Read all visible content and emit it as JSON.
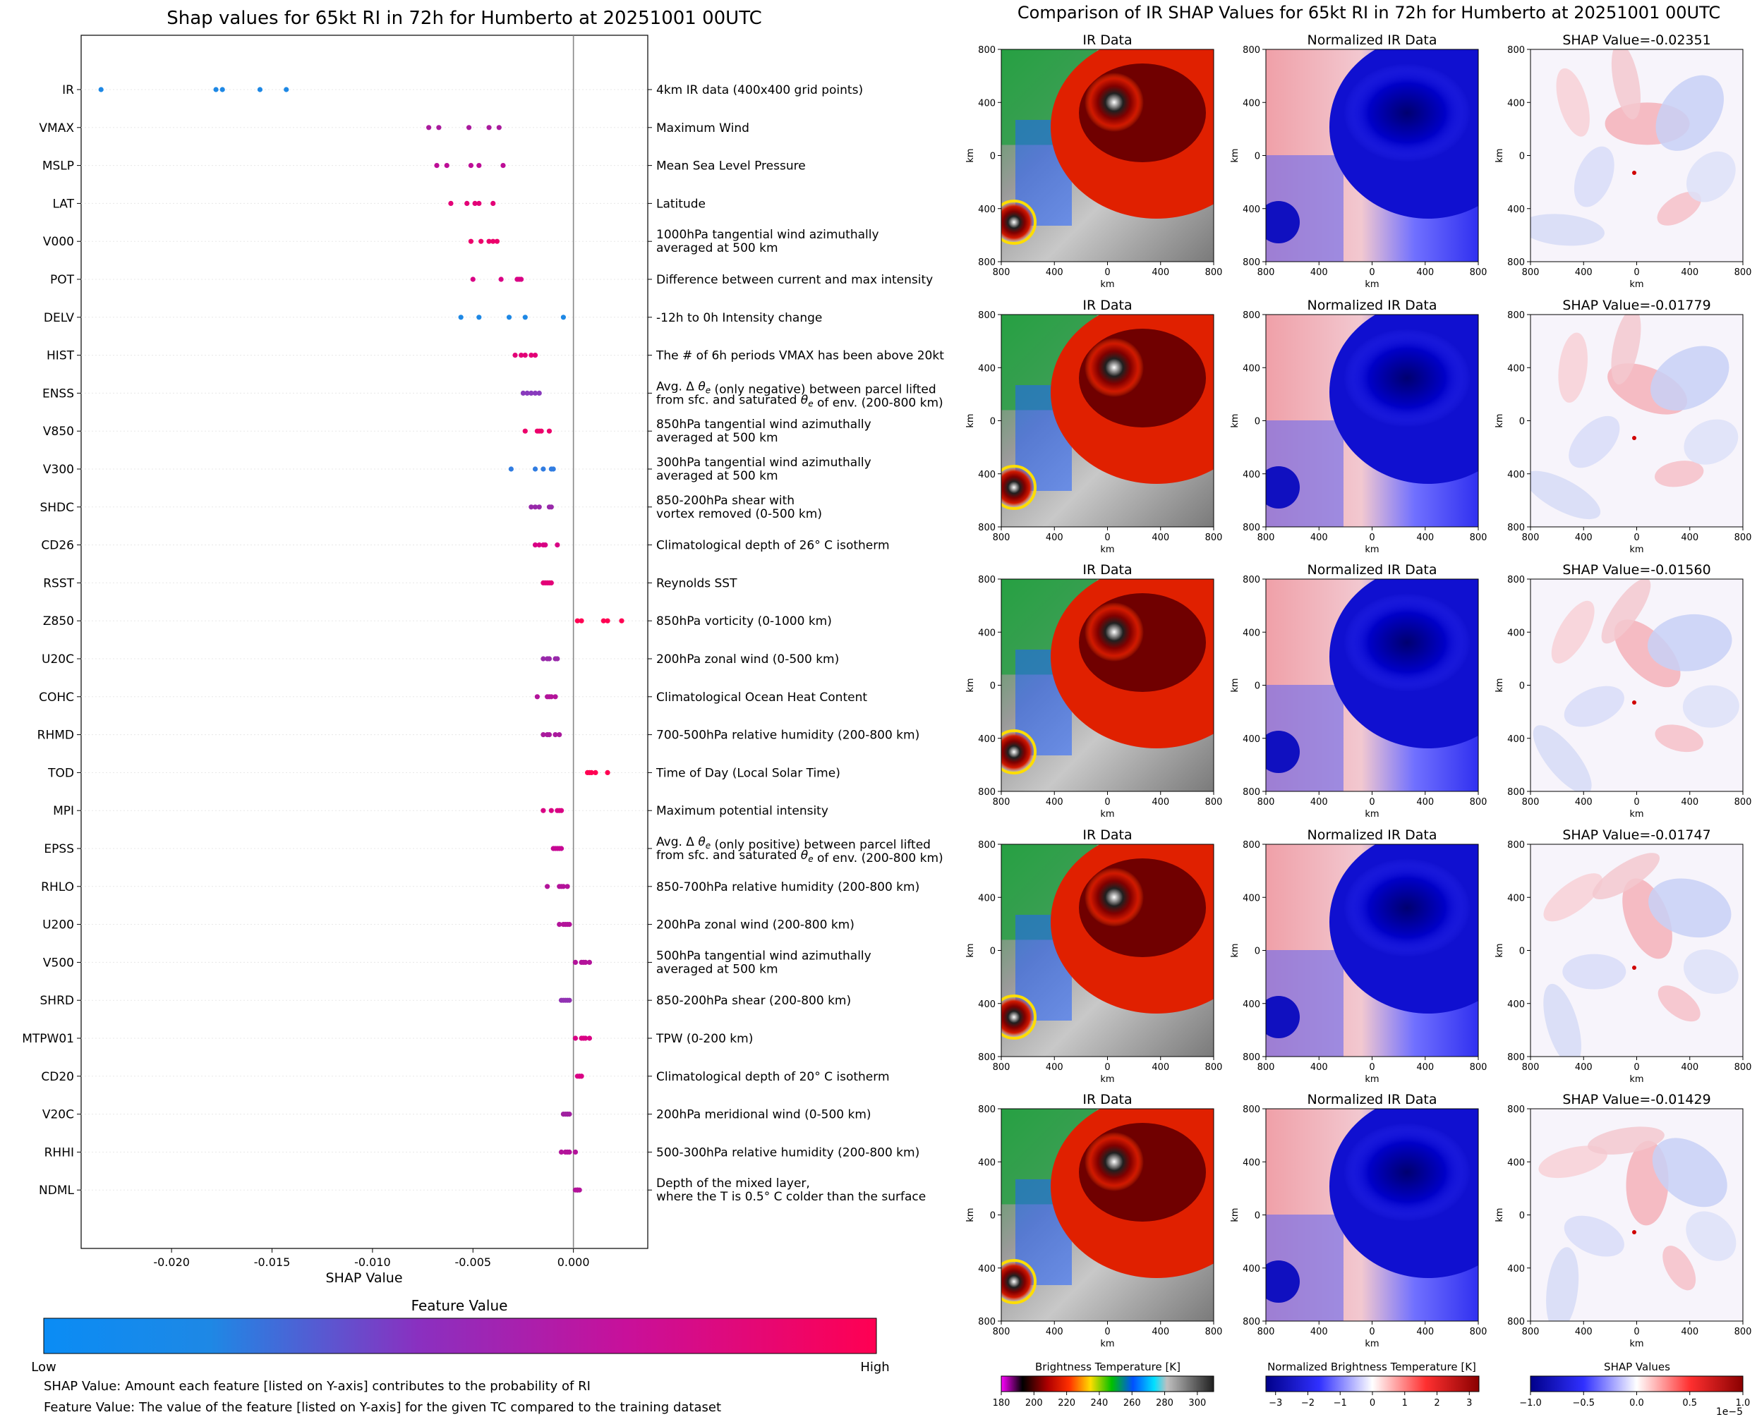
{
  "left_chart": {
    "title": "Shap values for 65kt RI in 72h for Humberto at 20251001 00UTC",
    "xlabel": "SHAP Value",
    "colorbar_title": "Feature Value",
    "colorbar_low": "Low",
    "colorbar_high": "High",
    "footnote_1": "SHAP Value: Amount each feature [listed on Y-axis] contributes to the probability of RI",
    "footnote_2": "Feature Value: The value of the feature [listed on Y-axis] for the given TC compared to the training dataset",
    "ticks": [
      "-0.020",
      "-0.015",
      "-0.010",
      "-0.005",
      "0.000"
    ]
  },
  "right_chart": {
    "suptitle": "Comparison of IR SHAP Values for 65kt RI in 72h for Humberto at 20251001 00UTC",
    "col1_title": "IR Data",
    "col2_title": "Normalized IR Data",
    "shap_prefix": "SHAP Value=",
    "axis_label": "km",
    "axis_ticks": [
      "800",
      "400",
      "0",
      "400",
      "800"
    ],
    "cbar1_title": "Brightness Temperature [K]",
    "cbar2_title": "Normalized Brightness Temperature [K]",
    "cbar3_title": "SHAP Values",
    "cbar3_scale": "1e−5",
    "cbar1_ticks": [
      "180",
      "200",
      "220",
      "240",
      "260",
      "280",
      "300"
    ],
    "cbar2_ticks": [
      "−3",
      "−2",
      "−1",
      "0",
      "1",
      "2",
      "3"
    ],
    "cbar3_ticks": [
      "−1.0",
      "−0.5",
      "0.0",
      "0.5",
      "1.0"
    ]
  },
  "chart_data": [
    {
      "type": "scatter",
      "title": "Shap values for 65kt RI in 72h for Humberto at 20251001 00UTC",
      "xlabel": "SHAP Value",
      "xlim": [
        -0.0245,
        0.0037
      ],
      "colormap": [
        "#1e88e5",
        "#7a4cd0",
        "#a020a0",
        "#d00090",
        "#ff0052"
      ],
      "features": [
        {
          "name": "IR",
          "desc": [
            "4km IR data (400x400 grid points)"
          ],
          "values": [
            -0.02351,
            -0.01779,
            -0.01747,
            -0.0156,
            -0.01429
          ],
          "color": 0
        },
        {
          "name": "VMAX",
          "desc": [
            "Maximum Wind"
          ],
          "values": [
            -0.0072,
            -0.0067,
            -0.0052,
            -0.0042,
            -0.0037
          ],
          "color": 0.55
        },
        {
          "name": "MSLP",
          "desc": [
            "Mean Sea Level Pressure"
          ],
          "values": [
            -0.0068,
            -0.0063,
            -0.0051,
            -0.0047,
            -0.0035
          ],
          "color": 0.65
        },
        {
          "name": "LAT",
          "desc": [
            "Latitude"
          ],
          "values": [
            -0.0061,
            -0.0053,
            -0.0049,
            -0.0047,
            -0.004
          ],
          "color": 0.85
        },
        {
          "name": "V000",
          "desc": [
            "1000hPa tangential wind azimuthally",
            "averaged at 500 km"
          ],
          "values": [
            -0.0051,
            -0.0046,
            -0.0042,
            -0.004,
            -0.0038
          ],
          "color": 0.9
        },
        {
          "name": "POT",
          "desc": [
            "Difference between current and max intensity"
          ],
          "values": [
            -0.005,
            -0.0036,
            -0.0028,
            -0.0027,
            -0.0026
          ],
          "color": 0.8
        },
        {
          "name": "DELV",
          "desc": [
            "-12h to 0h Intensity change"
          ],
          "values": [
            -0.0056,
            -0.0047,
            -0.0032,
            -0.0024,
            -0.0005
          ],
          "color": 0
        },
        {
          "name": "HIST",
          "desc": [
            "The # of 6h periods VMAX has been above 20kt"
          ],
          "values": [
            -0.0029,
            -0.0026,
            -0.0024,
            -0.0021,
            -0.0019
          ],
          "color": 0.85
        },
        {
          "name": "ENSS",
          "desc": [
            "Avg. Δ θe (only negative) between parcel lifted",
            "from sfc. and saturated θe of env. (200-800 km)"
          ],
          "values": [
            -0.0025,
            -0.0023,
            -0.0021,
            -0.0019,
            -0.0017
          ],
          "color": 0.35
        },
        {
          "name": "V850",
          "desc": [
            "850hPa tangential wind azimuthally",
            "averaged at 500 km"
          ],
          "values": [
            -0.0024,
            -0.0018,
            -0.0017,
            -0.0016,
            -0.0012
          ],
          "color": 0.9
        },
        {
          "name": "V300",
          "desc": [
            "300hPa tangential wind azimuthally",
            "averaged at 500 km"
          ],
          "values": [
            -0.0031,
            -0.0019,
            -0.0015,
            -0.0011,
            -0.001
          ],
          "color": 0.05
        },
        {
          "name": "SHDC",
          "desc": [
            "850-200hPa shear with",
            "vortex removed (0-500 km)"
          ],
          "values": [
            -0.0021,
            -0.0019,
            -0.0017,
            -0.0012,
            -0.0011
          ],
          "color": 0.45
        },
        {
          "name": "CD26",
          "desc": [
            "Climatological depth of 26° C isotherm"
          ],
          "values": [
            -0.0019,
            -0.0017,
            -0.0015,
            -0.0014,
            -0.0008
          ],
          "color": 0.8
        },
        {
          "name": "RSST",
          "desc": [
            "Reynolds SST"
          ],
          "values": [
            -0.0015,
            -0.0014,
            -0.0013,
            -0.0012,
            -0.0011
          ],
          "color": 0.85
        },
        {
          "name": "Z850",
          "desc": [
            "850hPa vorticity (0-1000 km)"
          ],
          "values": [
            0.0002,
            0.0004,
            0.0015,
            0.0017,
            0.0024
          ],
          "color": 1
        },
        {
          "name": "U20C",
          "desc": [
            "200hPa zonal wind (0-500 km)"
          ],
          "values": [
            -0.0015,
            -0.0013,
            -0.0012,
            -0.0009,
            -0.0008
          ],
          "color": 0.45
        },
        {
          "name": "COHC",
          "desc": [
            "Climatological Ocean Heat Content"
          ],
          "values": [
            -0.0018,
            -0.0013,
            -0.0012,
            -0.0011,
            -0.0009
          ],
          "color": 0.6
        },
        {
          "name": "RHMD",
          "desc": [
            "700-500hPa relative humidity (200-800 km)"
          ],
          "values": [
            -0.0015,
            -0.0013,
            -0.0012,
            -0.0009,
            -0.0007
          ],
          "color": 0.55
        },
        {
          "name": "TOD",
          "desc": [
            "Time of Day (Local Solar Time)"
          ],
          "values": [
            0.0007,
            0.0008,
            0.0009,
            0.0011,
            0.0017
          ],
          "color": 1
        },
        {
          "name": "MPI",
          "desc": [
            "Maximum potential intensity"
          ],
          "values": [
            -0.0015,
            -0.0011,
            -0.0008,
            -0.0007,
            -0.0006
          ],
          "color": 0.8
        },
        {
          "name": "EPSS",
          "desc": [
            "Avg. Δ θe (only positive) between parcel lifted",
            "from sfc. and saturated θe of env. (200-800 km)"
          ],
          "values": [
            -0.001,
            -0.0009,
            -0.0008,
            -0.0007,
            -0.0006
          ],
          "color": 0.7
        },
        {
          "name": "RHLO",
          "desc": [
            "850-700hPa relative humidity (200-800 km)"
          ],
          "values": [
            -0.0013,
            -0.0007,
            -0.0006,
            -0.0005,
            -0.0003
          ],
          "color": 0.6
        },
        {
          "name": "U200",
          "desc": [
            "200hPa zonal wind (200-800 km)"
          ],
          "values": [
            -0.0007,
            -0.0005,
            -0.0004,
            -0.0003,
            -0.0002
          ],
          "color": 0.6
        },
        {
          "name": "V500",
          "desc": [
            "500hPa tangential wind azimuthally",
            "averaged at 500 km"
          ],
          "values": [
            0.0001,
            0.0004,
            0.0005,
            0.0006,
            0.0008
          ],
          "color": 0.6
        },
        {
          "name": "SHRD",
          "desc": [
            "850-200hPa shear (200-800 km)"
          ],
          "values": [
            -0.0006,
            -0.0005,
            -0.0004,
            -0.0003,
            -0.0002
          ],
          "color": 0.4
        },
        {
          "name": "MTPW01",
          "desc": [
            "TPW (0-200 km)"
          ],
          "values": [
            0.0001,
            0.0004,
            0.0005,
            0.0006,
            0.0008
          ],
          "color": 0.8
        },
        {
          "name": "CD20",
          "desc": [
            "Climatological depth of 20° C isotherm"
          ],
          "values": [
            0.0002,
            0.0003,
            0.0003,
            0.0004,
            0.0004
          ],
          "color": 0.8
        },
        {
          "name": "V20C",
          "desc": [
            "200hPa meridional wind (0-500 km)"
          ],
          "values": [
            -0.0005,
            -0.0004,
            -0.0003,
            -0.0003,
            -0.0002
          ],
          "color": 0.5
        },
        {
          "name": "RHHI",
          "desc": [
            "500-300hPa relative humidity (200-800 km)"
          ],
          "values": [
            -0.0006,
            -0.0004,
            -0.0003,
            -0.0002,
            0.0001
          ],
          "color": 0.6
        },
        {
          "name": "NDML",
          "desc": [
            "Depth of the mixed layer,",
            "where the T is 0.5° C colder than the surface"
          ],
          "values": [
            0.0001,
            0.0002,
            0.0002,
            0.0002,
            0.0003
          ],
          "color": 0.6
        }
      ]
    },
    {
      "type": "heatmap",
      "title": "Comparison of IR SHAP Values for 65kt RI in 72h for Humberto at 20251001 00UTC",
      "rows": [
        {
          "shap_value": "-0.02351"
        },
        {
          "shap_value": "-0.01779"
        },
        {
          "shap_value": "-0.01560"
        },
        {
          "shap_value": "-0.01747"
        },
        {
          "shap_value": "-0.01429"
        }
      ],
      "extent_km": [
        -800,
        800
      ],
      "colorbars": [
        {
          "label": "Brightness Temperature [K]",
          "range": [
            180,
            310
          ]
        },
        {
          "label": "Normalized Brightness Temperature [K]",
          "range": [
            -3.3,
            3.3
          ]
        },
        {
          "label": "SHAP Values",
          "range": [
            -1.0,
            1.0
          ],
          "scale": "1e−5"
        }
      ]
    }
  ]
}
